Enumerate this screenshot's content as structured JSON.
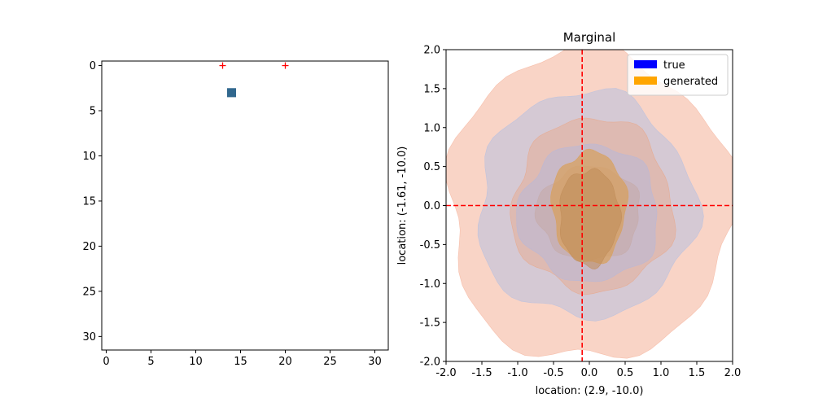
{
  "chart_data": [
    {
      "type": "image",
      "xlim": [
        -0.5,
        31.5
      ],
      "ylim": [
        31.5,
        -0.5
      ],
      "xticks": [
        0,
        5,
        10,
        15,
        20,
        25,
        30
      ],
      "yticks": [
        0,
        5,
        10,
        15,
        20,
        25,
        30
      ],
      "markers": [
        {
          "kind": "plus",
          "x": 13,
          "y": 0,
          "color": "#ff0000"
        },
        {
          "kind": "plus",
          "x": 20,
          "y": 0,
          "color": "#ff0000"
        }
      ],
      "pixels": [
        {
          "x": 14,
          "y": 3,
          "color": "#31688e"
        }
      ]
    },
    {
      "type": "contour",
      "title": "Marginal",
      "xlabel": "location: (2.9, -10.0)",
      "ylabel": "location: (-1.61, -10.0)",
      "xlim": [
        -2.0,
        2.0
      ],
      "ylim": [
        -2.0,
        2.0
      ],
      "xticks": [
        "-2.0",
        "-1.5",
        "-1.0",
        "-0.5",
        "0.0",
        "0.5",
        "1.0",
        "1.5",
        "2.0"
      ],
      "yticks": [
        "-2.0",
        "-1.5",
        "-1.0",
        "-0.5",
        "0.0",
        "0.5",
        "1.0",
        "1.5",
        "2.0"
      ],
      "legend_position": "top-right",
      "legend": [
        {
          "label": "true",
          "color": "#0000ff"
        },
        {
          "label": "generated",
          "color": "#ffa500"
        }
      ],
      "vline_x": -0.1,
      "hline_y": 0.0,
      "reference_line_color": "#ff0000",
      "contours": [
        {
          "name": "outer-salmon",
          "color": "#f5b7a0",
          "opacity": 0.6,
          "cx": 0.0,
          "cy": 0.0,
          "rx": 2.0,
          "ry": 2.0
        },
        {
          "name": "true-mid-blue",
          "color": "#b8c0e0",
          "opacity": 0.55,
          "cx": -0.05,
          "cy": 0.0,
          "rx": 1.52,
          "ry": 1.45
        },
        {
          "name": "salmon-mid",
          "color": "#e9a88a",
          "opacity": 0.45,
          "cx": 0.05,
          "cy": 0.0,
          "rx": 1.12,
          "ry": 1.12
        },
        {
          "name": "true-inner-blue",
          "color": "#b8b8d8",
          "opacity": 0.55,
          "cx": 0.0,
          "cy": -0.1,
          "rx": 0.98,
          "ry": 0.88
        },
        {
          "name": "true-core",
          "color": "#c6aaa8",
          "opacity": 0.6,
          "cx": 0.0,
          "cy": -0.1,
          "rx": 0.72,
          "ry": 0.6
        },
        {
          "name": "generated-core",
          "color": "#d9a05a",
          "opacity": 0.7,
          "cx": 0.0,
          "cy": -0.02,
          "rx": 0.52,
          "ry": 0.72
        },
        {
          "name": "generated-inner",
          "color": "#c08c58",
          "opacity": 0.55,
          "cx": 0.0,
          "cy": -0.15,
          "rx": 0.42,
          "ry": 0.62
        }
      ]
    }
  ]
}
